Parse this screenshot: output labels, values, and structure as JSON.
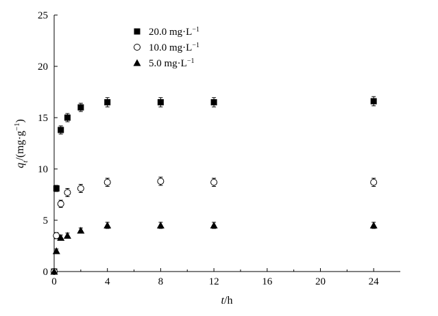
{
  "chart_data": {
    "type": "scatter",
    "title": "",
    "xlabel": "t/h",
    "xlabel_parts": {
      "var": "t",
      "unit": "/h"
    },
    "ylabel": "qt/(mg·g−1)",
    "ylabel_parts": {
      "var": "q",
      "sub": "t",
      "pre": "/(mg·g",
      "sup": "−1",
      "post": ")"
    },
    "xlim": [
      0,
      26
    ],
    "ylim": [
      0,
      25
    ],
    "xticks": [
      0,
      4,
      8,
      12,
      16,
      20,
      24
    ],
    "xtick_labels": [
      "0",
      "4",
      "8",
      "12",
      "16",
      "20",
      "24"
    ],
    "yticks": [
      0,
      5,
      10,
      15,
      20,
      25
    ],
    "ytick_labels": [
      "0",
      "5",
      "10",
      "15",
      "20",
      "25"
    ],
    "grid": false,
    "legend_position": "top-center",
    "series": [
      {
        "name": "20.0 mg·L−1",
        "legend_parts": {
          "main": "20.0 mg·L",
          "sup": "−1"
        },
        "marker": "filled-square",
        "x": [
          0,
          0.17,
          0.5,
          1,
          2,
          4,
          8,
          12,
          24
        ],
        "y": [
          0,
          8.1,
          13.8,
          15.0,
          16.0,
          16.5,
          16.5,
          16.5,
          16.6
        ],
        "err": [
          0,
          0.3,
          0.4,
          0.4,
          0.4,
          0.45,
          0.45,
          0.45,
          0.45
        ]
      },
      {
        "name": "10.0 mg·L−1",
        "legend_parts": {
          "main": "10.0 mg·L",
          "sup": "−1"
        },
        "marker": "open-circle",
        "x": [
          0,
          0.17,
          0.5,
          1,
          2,
          4,
          8,
          12,
          24
        ],
        "y": [
          0,
          3.5,
          6.6,
          7.7,
          8.1,
          8.7,
          8.8,
          8.7,
          8.7
        ],
        "err": [
          0,
          0.3,
          0.35,
          0.4,
          0.4,
          0.4,
          0.4,
          0.4,
          0.4
        ]
      },
      {
        "name": "5.0 mg·L−1",
        "legend_parts": {
          "main": "5.0 mg·L",
          "sup": "−1"
        },
        "marker": "filled-triangle",
        "x": [
          0,
          0.17,
          0.5,
          1,
          2,
          4,
          8,
          12,
          24
        ],
        "y": [
          0,
          2.0,
          3.3,
          3.5,
          4.0,
          4.5,
          4.5,
          4.5,
          4.5
        ],
        "err": [
          0,
          0.2,
          0.25,
          0.25,
          0.25,
          0.3,
          0.3,
          0.3,
          0.3
        ]
      }
    ]
  }
}
